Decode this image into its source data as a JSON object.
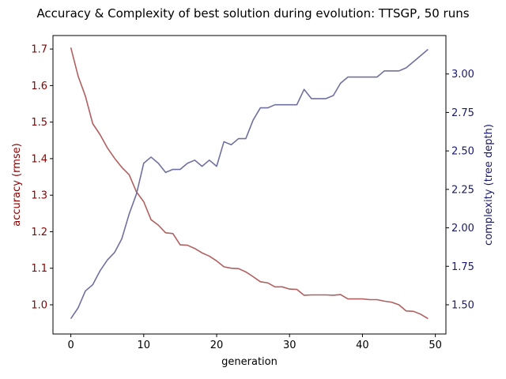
{
  "chart_data": {
    "type": "line",
    "title": "Accuracy & Complexity of best solution during evolution: TTSGP, 50 runs",
    "xlabel": "generation",
    "x_ticks": [
      0,
      10,
      20,
      30,
      40,
      50
    ],
    "xlim": [
      -2.45,
      51.45
    ],
    "left_axis": {
      "label": "accuracy (rmse)",
      "color": "#8b0000",
      "ylim": [
        0.92,
        1.737
      ],
      "ticks": [
        "1.0",
        "1.1",
        "1.2",
        "1.3",
        "1.4",
        "1.5",
        "1.6",
        "1.7"
      ],
      "tick_values": [
        1.0,
        1.1,
        1.2,
        1.3,
        1.4,
        1.5,
        1.6,
        1.7
      ]
    },
    "right_axis": {
      "label": "complexity (tree depth)",
      "color": "#191970",
      "ylim": [
        1.31,
        3.25
      ],
      "ticks": [
        "1.50",
        "1.75",
        "2.00",
        "2.25",
        "2.50",
        "2.75",
        "3.00"
      ],
      "tick_values": [
        1.5,
        1.75,
        2.0,
        2.25,
        2.5,
        2.75,
        3.0
      ]
    },
    "x": [
      0,
      1,
      2,
      3,
      4,
      5,
      6,
      7,
      8,
      9,
      10,
      11,
      12,
      13,
      14,
      15,
      16,
      17,
      18,
      19,
      20,
      21,
      22,
      23,
      24,
      25,
      26,
      27,
      28,
      29,
      30,
      31,
      32,
      33,
      34,
      35,
      36,
      37,
      38,
      39,
      40,
      41,
      42,
      43,
      44,
      45,
      46,
      47,
      48,
      49
    ],
    "series": [
      {
        "axis": "left",
        "color": "#b06060",
        "values": [
          1.704,
          1.626,
          1.571,
          1.496,
          1.466,
          1.43,
          1.401,
          1.376,
          1.356,
          1.309,
          1.282,
          1.233,
          1.218,
          1.197,
          1.195,
          1.164,
          1.163,
          1.154,
          1.142,
          1.133,
          1.12,
          1.104,
          1.1,
          1.099,
          1.09,
          1.077,
          1.063,
          1.06,
          1.049,
          1.049,
          1.043,
          1.042,
          1.026,
          1.027,
          1.027,
          1.027,
          1.026,
          1.028,
          1.016,
          1.016,
          1.016,
          1.014,
          1.014,
          1.01,
          1.007,
          1.0,
          0.983,
          0.982,
          0.974,
          0.962
        ]
      },
      {
        "axis": "right",
        "color": "#7070a0",
        "values": [
          1.41,
          1.48,
          1.59,
          1.63,
          1.72,
          1.79,
          1.84,
          1.93,
          2.09,
          2.22,
          2.42,
          2.46,
          2.42,
          2.36,
          2.38,
          2.38,
          2.42,
          2.44,
          2.4,
          2.44,
          2.4,
          2.56,
          2.54,
          2.58,
          2.58,
          2.7,
          2.78,
          2.78,
          2.8,
          2.8,
          2.8,
          2.8,
          2.9,
          2.84,
          2.84,
          2.84,
          2.86,
          2.94,
          2.98,
          2.98,
          2.98,
          2.98,
          2.98,
          3.02,
          3.02,
          3.02,
          3.04,
          3.08,
          3.12,
          3.16
        ]
      }
    ]
  }
}
